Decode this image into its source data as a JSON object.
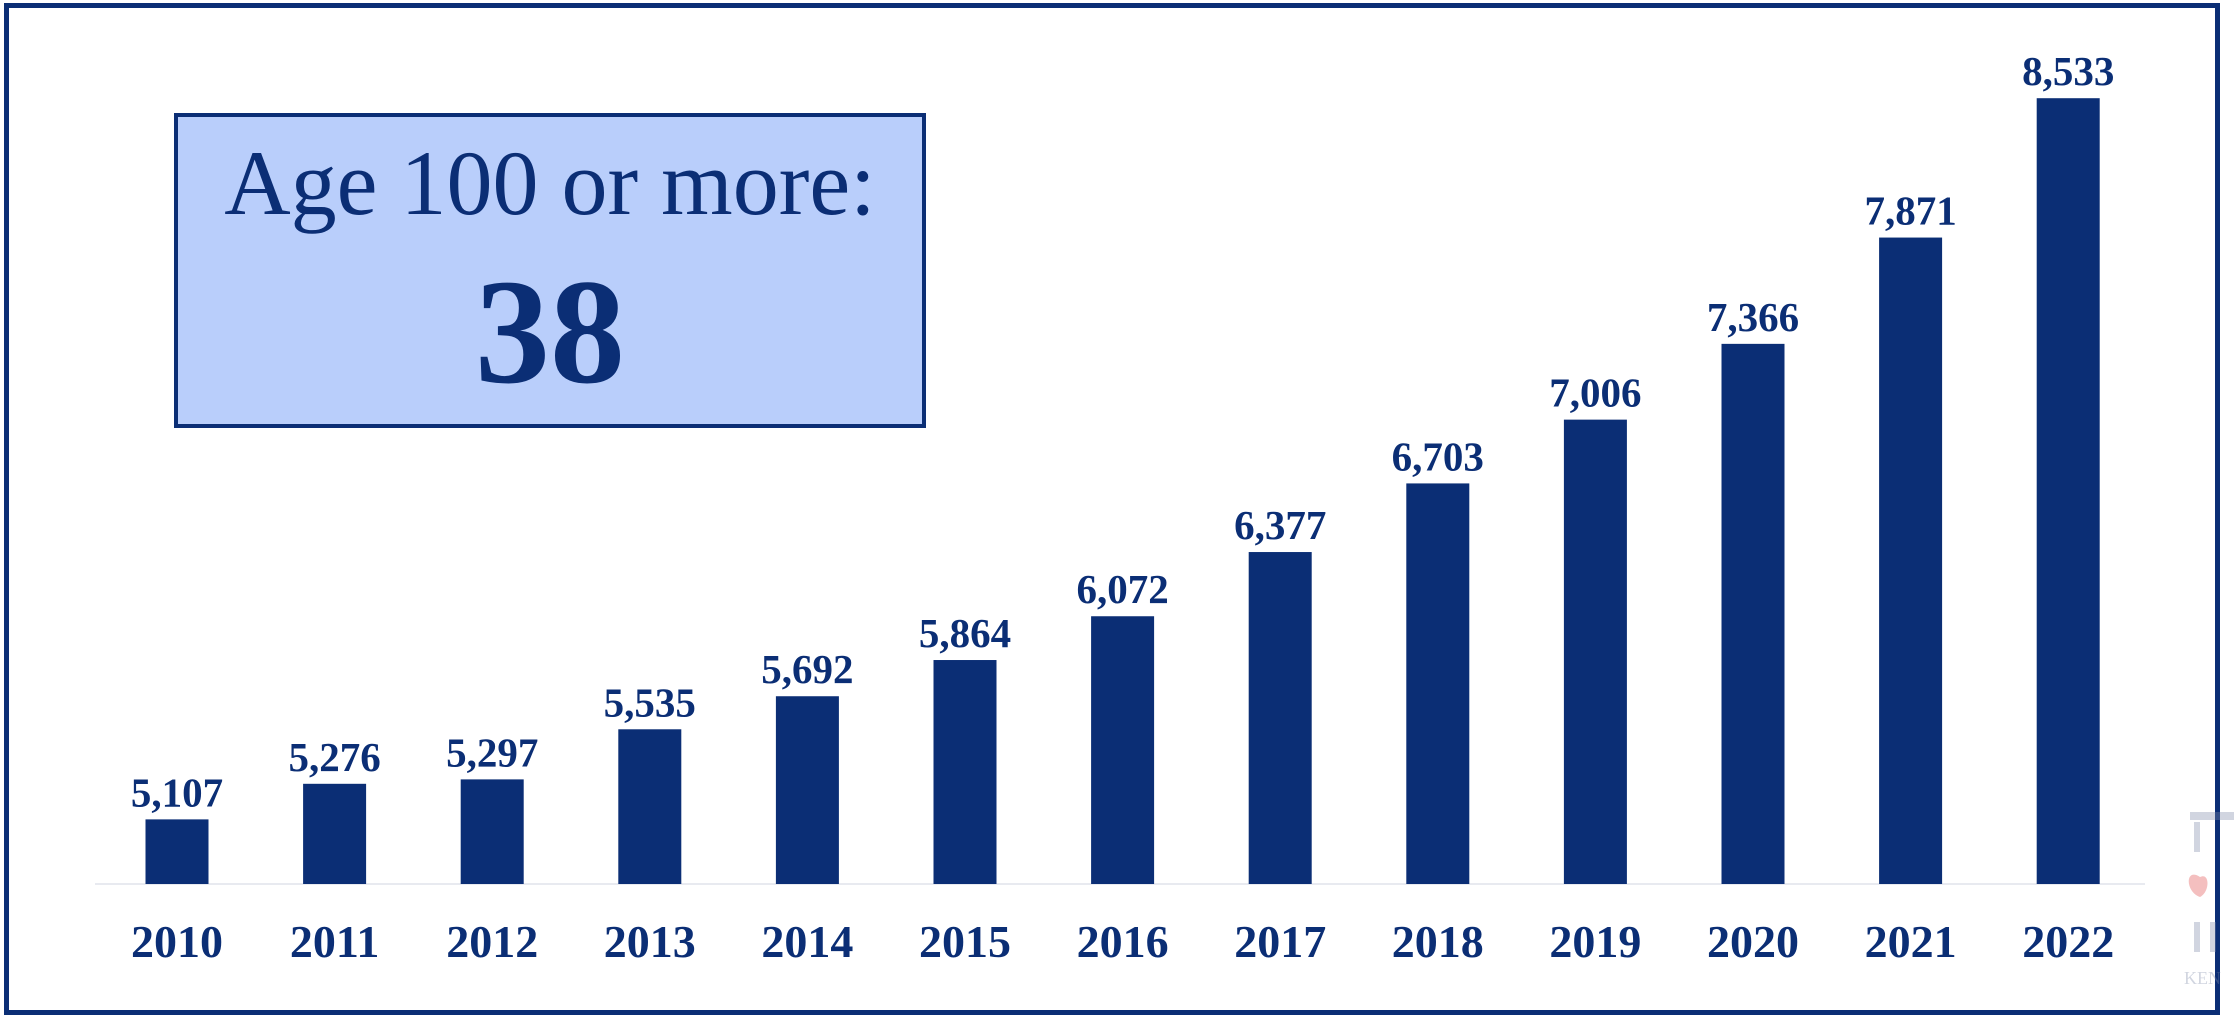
{
  "chart_data": {
    "type": "bar",
    "categories": [
      "2010",
      "2011",
      "2012",
      "2013",
      "2014",
      "2015",
      "2016",
      "2017",
      "2018",
      "2019",
      "2020",
      "2021",
      "2022"
    ],
    "values": [
      5107,
      5276,
      5297,
      5535,
      5692,
      5864,
      6072,
      6377,
      6703,
      7006,
      7366,
      7871,
      8533
    ],
    "value_labels": [
      "5,107",
      "5,276",
      "5,297",
      "5,535",
      "5,692",
      "5,864",
      "6,072",
      "6,377",
      "6,703",
      "7,006",
      "7,366",
      "7,871",
      "8,533"
    ],
    "title": "",
    "xlabel": "",
    "ylabel": "",
    "ylim": [
      4800,
      8800
    ],
    "grid": false,
    "bar_color": "#0b2e75"
  },
  "callout": {
    "label": "Age 100 or more:",
    "value": "38"
  },
  "watermark": {
    "text": "KEN",
    "icon": "pillar-logo-icon"
  }
}
